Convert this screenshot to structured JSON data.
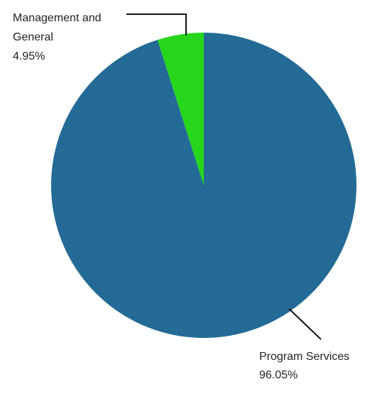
{
  "chart_data": {
    "type": "pie",
    "slices": [
      {
        "label": "Program Services",
        "value_label": "96.05%",
        "value": 96.05,
        "color": "#236a96"
      },
      {
        "label": "Management and General",
        "label_lines": [
          "Management and",
          "General"
        ],
        "value_label": "4.95%",
        "value": 4.95,
        "color": "#27d61c"
      }
    ]
  }
}
